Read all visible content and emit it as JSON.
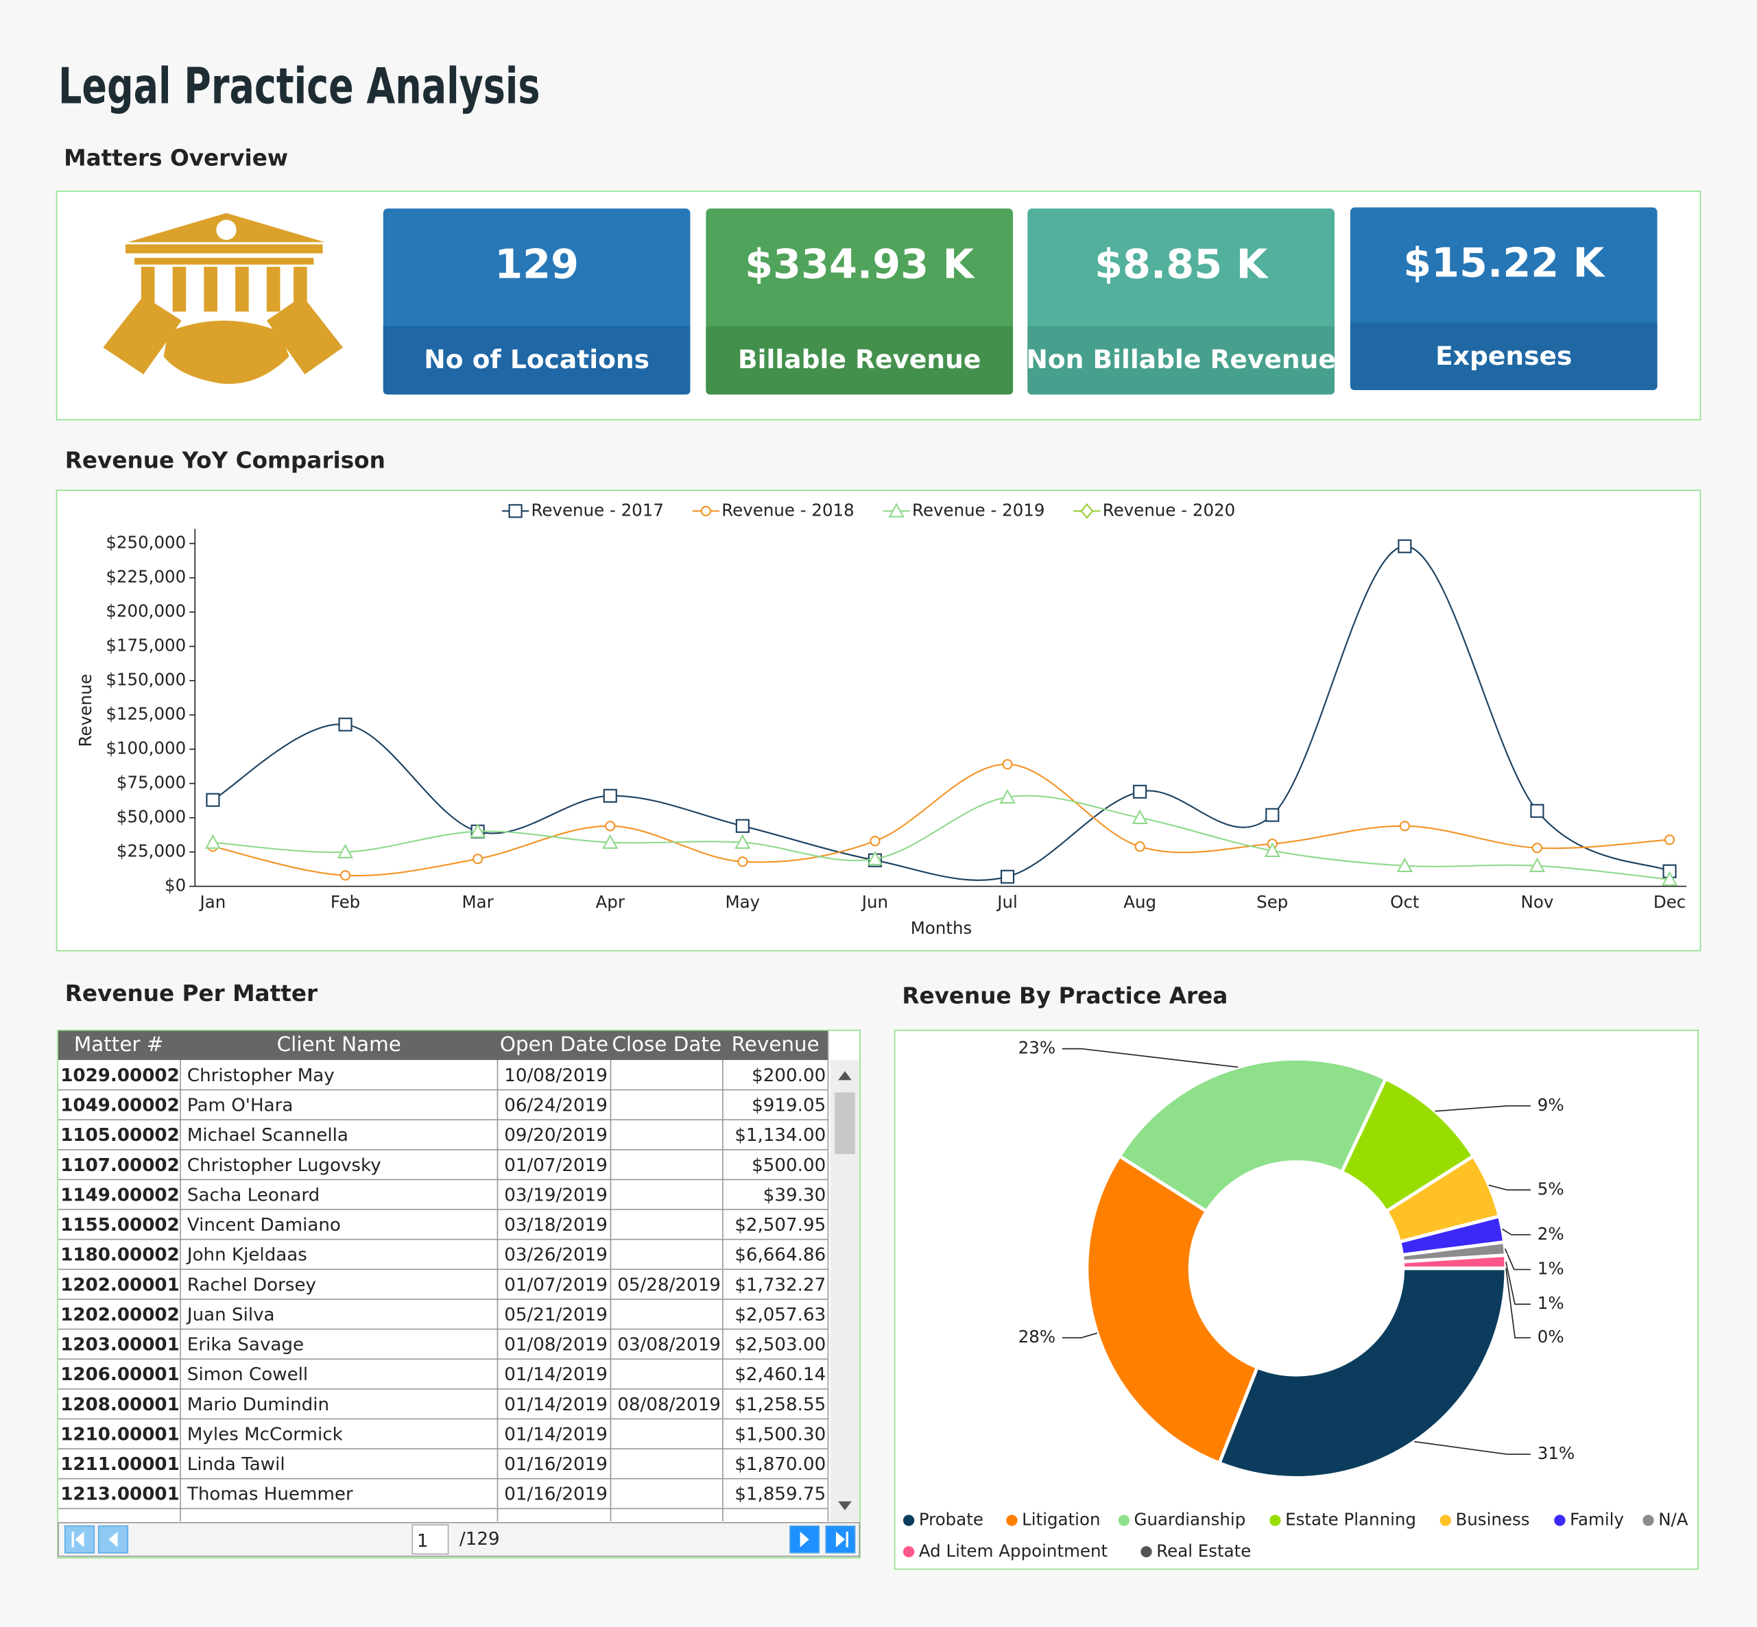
{
  "header": {
    "title": "Legal Practice Analysis"
  },
  "sections": {
    "overview": "Matters Overview",
    "revenue_yoy": "Revenue YoY Comparison",
    "per_matter": "Revenue Per Matter",
    "by_area": "Revenue By Practice Area"
  },
  "kpis": [
    {
      "value": "129",
      "label": "No of Locations"
    },
    {
      "value": "$334.93 K",
      "label": "Billable Revenue"
    },
    {
      "value": "$8.85 K",
      "label": "Non Billable Revenue"
    },
    {
      "value": "$15.22 K",
      "label": "Expenses"
    }
  ],
  "chart_data": [
    {
      "type": "line",
      "x_label": "Months",
      "y_label": "Revenue",
      "categories": [
        "Jan",
        "Feb",
        "Mar",
        "Apr",
        "May",
        "Jun",
        "Jul",
        "Aug",
        "Sep",
        "Oct",
        "Nov",
        "Dec"
      ],
      "series": [
        {
          "name": "Revenue - 2017",
          "color": "#1b3f5e",
          "values": [
            63000,
            118000,
            40000,
            66000,
            44000,
            19000,
            7000,
            69000,
            52000,
            248000,
            55000,
            11000
          ]
        },
        {
          "name": "Revenue - 2018",
          "color": "#f39325",
          "values": [
            29000,
            8000,
            20000,
            44000,
            18000,
            33000,
            89000,
            29000,
            31000,
            44000,
            28000,
            34000
          ]
        },
        {
          "name": "Revenue - 2019",
          "color": "#8fd98b",
          "values": [
            32000,
            25000,
            40000,
            32000,
            32000,
            20000,
            65000,
            50000,
            26000,
            15000,
            15000,
            5000
          ]
        },
        {
          "name": "Revenue - 2020",
          "color": "#9acd32",
          "values": [
            null,
            null,
            null,
            null,
            null,
            null,
            null,
            null,
            null,
            null,
            null,
            null
          ]
        }
      ],
      "ylim": [
        0,
        250000
      ],
      "yticks": [
        {
          "value": 0,
          "label": "$0"
        },
        {
          "value": 25000,
          "label": "$25,000"
        },
        {
          "value": 50000,
          "label": "$50,000"
        },
        {
          "value": 75000,
          "label": "$75,000"
        },
        {
          "value": 100000,
          "label": "$100,000"
        },
        {
          "value": 125000,
          "label": "$125,000"
        },
        {
          "value": 150000,
          "label": "$150,000"
        },
        {
          "value": 175000,
          "label": "$175,000"
        },
        {
          "value": 200000,
          "label": "$200,000"
        },
        {
          "value": 225000,
          "label": "$225,000"
        },
        {
          "value": 250000,
          "label": "$250,000"
        }
      ],
      "legend": "top",
      "grid": false
    },
    {
      "type": "pie",
      "donut": true,
      "categories": [
        "Probate",
        "Litigation",
        "Guardianship",
        "Estate Planning",
        "Business",
        "Family",
        "N/A",
        "Ad Litem Appointment",
        "Real Estate"
      ],
      "values": [
        31,
        28,
        23,
        9,
        5,
        2,
        1,
        1,
        0
      ],
      "value_labels": [
        "31%",
        "28%",
        "23%",
        "9%",
        "5%",
        "2%",
        "1%",
        "1%",
        "0%"
      ],
      "colors": [
        "#0b3c5d",
        "#ff7f00",
        "#8ee08a",
        "#99dd00",
        "#ffc125",
        "#3b2af7",
        "#8c8c8c",
        "#ff5588",
        "#555555"
      ],
      "legend": "bottom"
    }
  ],
  "table": {
    "columns": [
      "Matter #",
      "Client Name",
      "Open Date",
      "Close Date",
      "Revenue"
    ],
    "rows": [
      [
        "1029.00002",
        "Christopher May",
        "10/08/2019",
        null,
        "$200.00"
      ],
      [
        "1049.00002",
        "Pam O'Hara",
        "06/24/2019",
        null,
        "$919.05"
      ],
      [
        "1105.00002",
        "Michael Scannella",
        "09/20/2019",
        null,
        "$1,134.00"
      ],
      [
        "1107.00002",
        "Christopher Lugovsky",
        "01/07/2019",
        null,
        "$500.00"
      ],
      [
        "1149.00002",
        "Sacha Leonard",
        "03/19/2019",
        null,
        "$39.30"
      ],
      [
        "1155.00002",
        "Vincent Damiano",
        "03/18/2019",
        null,
        "$2,507.95"
      ],
      [
        "1180.00002",
        "John Kjeldaas",
        "03/26/2019",
        null,
        "$6,664.86"
      ],
      [
        "1202.00001",
        "Rachel Dorsey",
        "01/07/2019",
        "05/28/2019",
        "$1,732.27"
      ],
      [
        "1202.00002",
        "Juan Silva",
        "05/21/2019",
        null,
        "$2,057.63"
      ],
      [
        "1203.00001",
        "Erika Savage",
        "01/08/2019",
        "03/08/2019",
        "$2,503.00"
      ],
      [
        "1206.00001",
        "Simon Cowell",
        "01/14/2019",
        null,
        "$2,460.14"
      ],
      [
        "1208.00001",
        "Mario Dumindin",
        "01/14/2019",
        "08/08/2019",
        "$1,258.55"
      ],
      [
        "1210.00001",
        "Myles McCormick",
        "01/14/2019",
        null,
        "$1,500.30"
      ],
      [
        "1211.00001",
        "Linda Tawil",
        "01/16/2019",
        null,
        "$1,870.00"
      ],
      [
        "1213.00001",
        "Thomas Huemmer",
        "01/16/2019",
        null,
        "$1,859.75"
      ]
    ],
    "pager": {
      "page": "1",
      "total": "/129"
    }
  }
}
